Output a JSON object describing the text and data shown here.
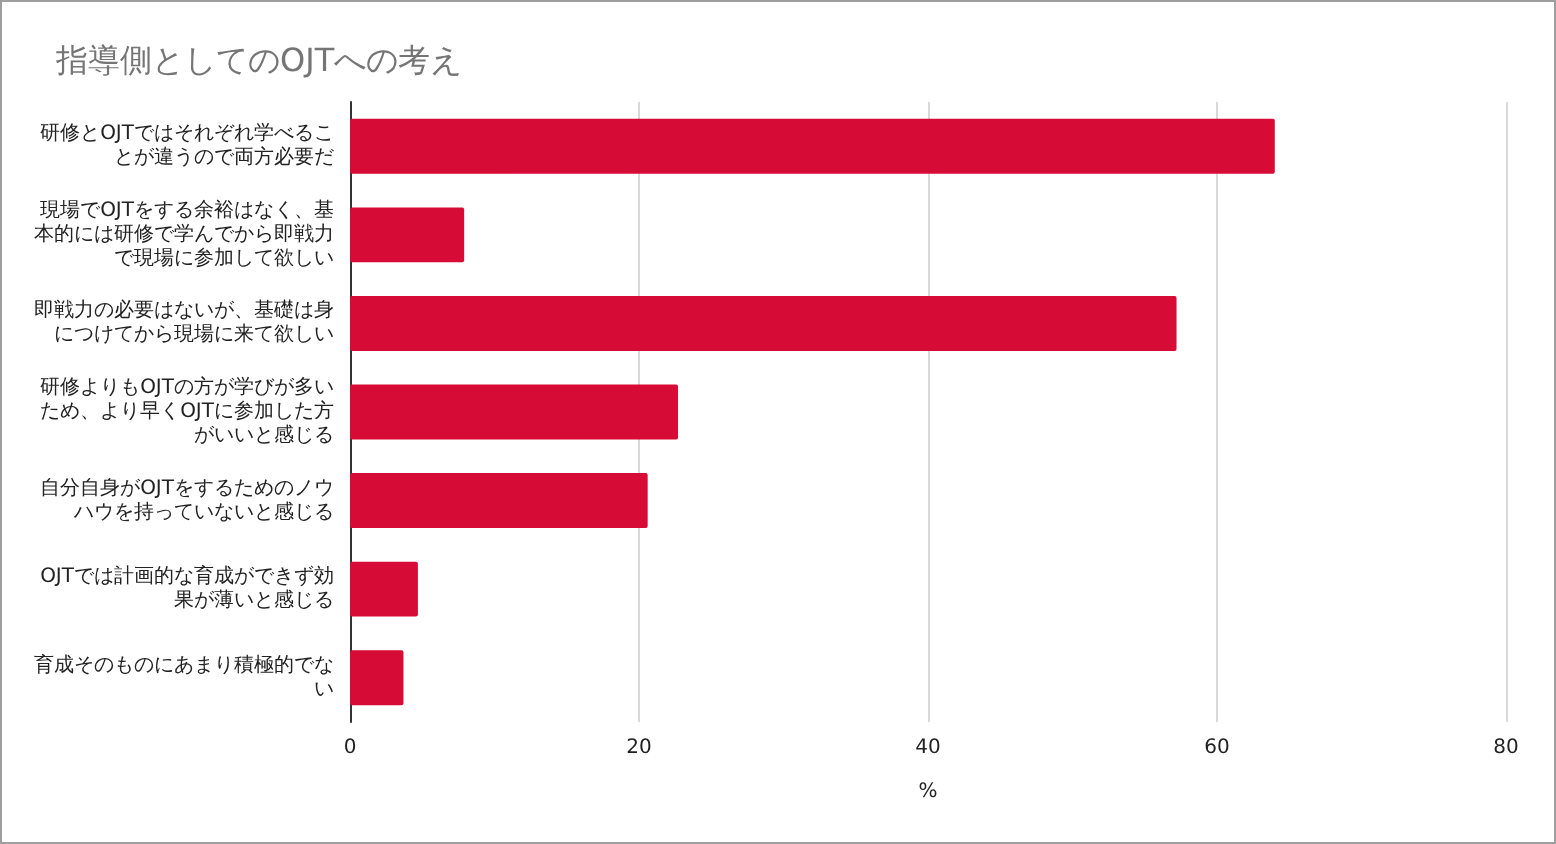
{
  "chart_data": {
    "type": "bar",
    "orientation": "horizontal",
    "title": "指導側としてのOJTへの考え",
    "xlabel": "%",
    "categories": [
      "研修とOJTではそれぞれ学べることが違うので両方必要だ",
      "現場でOJTをする余裕はなく、基本的には研修で学んでから即戦力で現場に参加して欲しい",
      "即戦力の必要はないが、基礎は身につけてから現場に来て欲しい",
      "研修よりもOJTの方が学びが多いため、より早くOJTに参加した方がいいと感じる",
      "自分自身がOJTをするためのノウハウを持っていないと感じる",
      "OJTでは計画的な育成ができず効果が薄いと感じる",
      "育成そのものにあまり積極的でない"
    ],
    "values": [
      64,
      7.9,
      57.2,
      22.7,
      20.6,
      4.7,
      3.7
    ],
    "color": "#d60c37",
    "xlim": [
      0,
      80
    ],
    "xticks": [
      0,
      20,
      40,
      60,
      80
    ],
    "grid": "x"
  }
}
